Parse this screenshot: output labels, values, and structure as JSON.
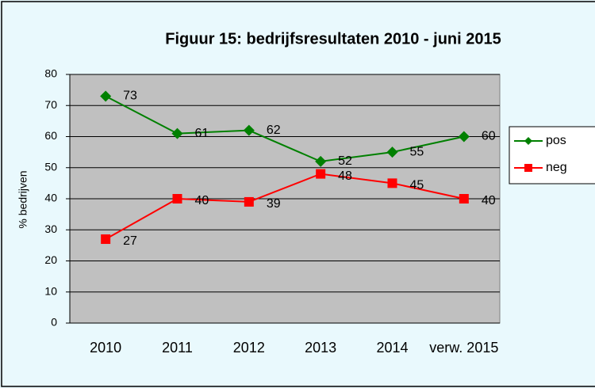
{
  "chart_data": {
    "type": "line",
    "title": "Figuur 15: bedrijfsresultaten 2010 -  juni 2015",
    "ylabel": "% bedrijven",
    "categories": [
      "2010",
      "2011",
      "2012",
      "2013",
      "2014",
      "verw. 2015"
    ],
    "series": [
      {
        "name": "pos",
        "color": "#008000",
        "values": [
          73,
          61,
          62,
          52,
          55,
          60
        ]
      },
      {
        "name": "neg",
        "color": "#ff0000",
        "values": [
          27,
          40,
          39,
          48,
          45,
          40
        ]
      }
    ],
    "ylim": [
      0,
      80
    ],
    "yticks": [
      0,
      10,
      20,
      30,
      40,
      50,
      60,
      70,
      80
    ],
    "grid": true,
    "legend": "right"
  }
}
